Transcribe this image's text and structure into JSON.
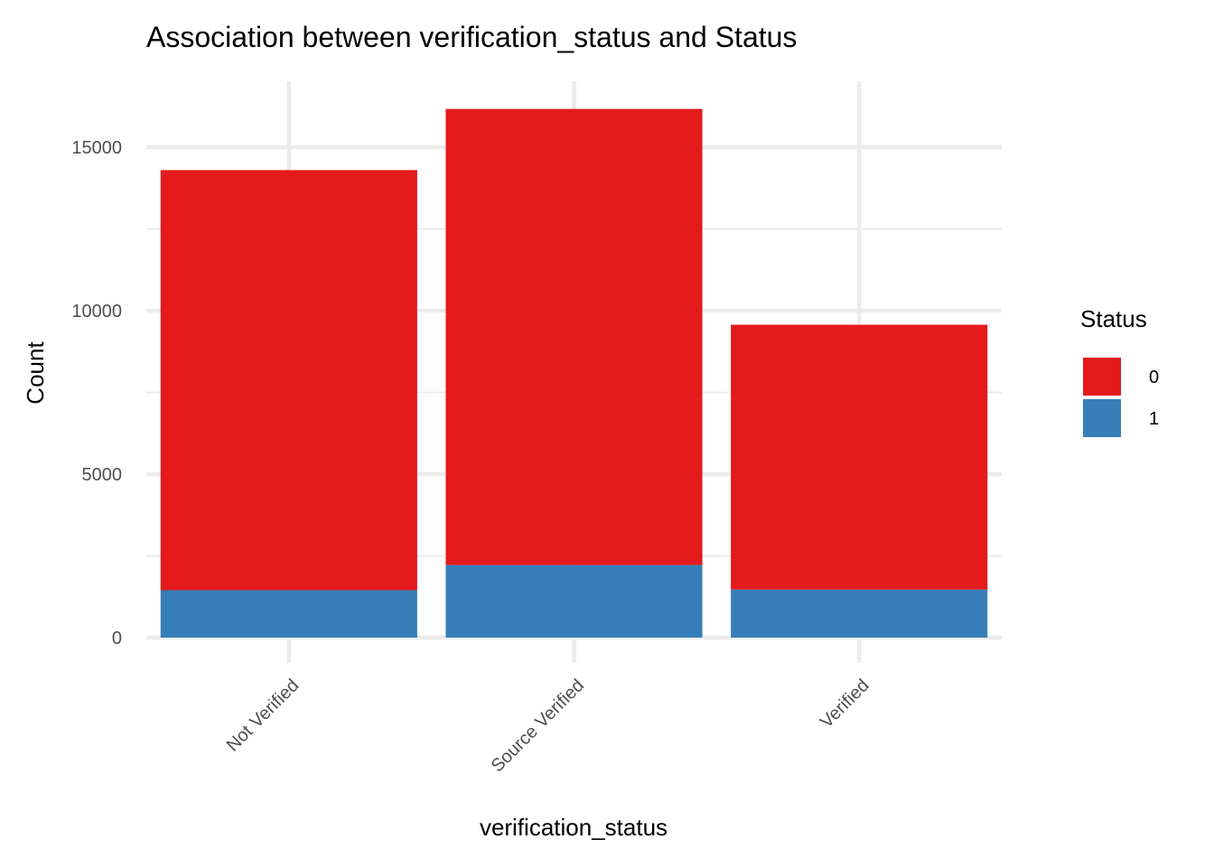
{
  "chart_data": {
    "type": "bar",
    "stacked": true,
    "title": "Association between verification_status and Status",
    "xlabel": "verification_status",
    "ylabel": "Count",
    "categories": [
      "Not Verified",
      "Source Verified",
      "Verified"
    ],
    "series": [
      {
        "name": "0",
        "values": [
          12850,
          13950,
          8100
        ],
        "color": "#E41A1C"
      },
      {
        "name": "1",
        "values": [
          1450,
          2220,
          1470
        ],
        "color": "#377EB8"
      }
    ],
    "ylim": [
      0,
      16500
    ],
    "yticks": [
      0,
      5000,
      10000,
      15000
    ],
    "ytick_labels": [
      "0",
      "5000",
      "10000",
      "15000"
    ],
    "grid": true,
    "legend": {
      "title": "Status",
      "placement": "right"
    }
  }
}
